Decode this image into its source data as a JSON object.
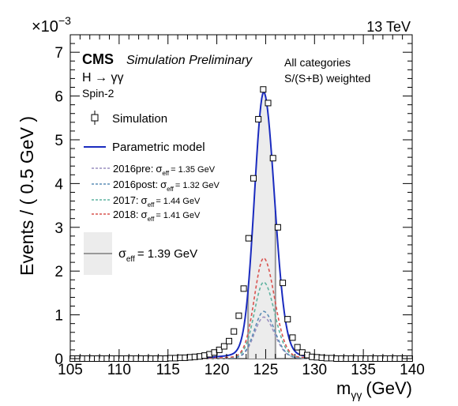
{
  "header": {
    "exponent_base": "×10",
    "exponent_power": "−3",
    "energy": "13 TeV"
  },
  "labels": {
    "cms": "CMS",
    "preliminary": "Simulation Preliminary",
    "process": "H → γγ",
    "spin": "Spin-2",
    "categories": "All categories",
    "weighting": "S/(S+B) weighted"
  },
  "legend": {
    "simulation": "Simulation",
    "model": "Parametric model",
    "years": [
      {
        "year": "2016pre:",
        "sigma": "σ",
        "sub": "eff",
        "value": "= 1.35 GeV",
        "color": "#9a8fbf"
      },
      {
        "year": "2016post:",
        "sigma": "σ",
        "sub": "eff",
        "value": "= 1.32 GeV",
        "color": "#5b8db5"
      },
      {
        "year": "2017:",
        "sigma": "σ",
        "sub": "eff",
        "value": "= 1.44 GeV",
        "color": "#5fb3a0"
      },
      {
        "year": "2018:",
        "sigma": "σ",
        "sub": "eff",
        "value": "= 1.41 GeV",
        "color": "#d9534f"
      }
    ],
    "combined": {
      "sigma": "σ",
      "sub": "eff",
      "value": "= 1.39 GeV"
    }
  },
  "chart_data": {
    "type": "line",
    "xlabel": "m",
    "xlabel_sub": "γγ",
    "xlabel_unit": "(GeV)",
    "ylabel": "Events / ( 0.5 GeV )",
    "xlim": [
      105,
      140
    ],
    "ylim": [
      0,
      7.4
    ],
    "y_scale_factor": "1e-3",
    "x_ticks": [
      105,
      110,
      115,
      120,
      125,
      130,
      135,
      140
    ],
    "y_ticks": [
      0,
      1,
      2,
      3,
      4,
      5,
      6,
      7
    ],
    "effective_window": [
      123.2,
      126.0
    ],
    "colors": {
      "model": "#1a2bbf",
      "band": "#ececec",
      "band_edge": "#999999"
    },
    "simulation": {
      "x": [
        105.25,
        105.75,
        106.25,
        106.75,
        107.25,
        107.75,
        108.25,
        108.75,
        109.25,
        109.75,
        110.25,
        110.75,
        111.25,
        111.75,
        112.25,
        112.75,
        113.25,
        113.75,
        114.25,
        114.75,
        115.25,
        115.75,
        116.25,
        116.75,
        117.25,
        117.75,
        118.25,
        118.75,
        119.25,
        119.75,
        120.25,
        120.75,
        121.25,
        121.75,
        122.25,
        122.75,
        123.25,
        123.75,
        124.25,
        124.75,
        125.25,
        125.75,
        126.25,
        126.75,
        127.25,
        127.75,
        128.25,
        128.75,
        129.25,
        129.75,
        130.25,
        130.75,
        131.25,
        131.75,
        132.25,
        132.75,
        133.25,
        133.75,
        134.25,
        134.75,
        135.25,
        135.75,
        136.25,
        136.75,
        137.25,
        137.75,
        138.25,
        138.75,
        139.25,
        139.75
      ],
      "y": [
        0.0,
        0.0,
        0.0,
        0.0,
        0.0,
        0.0,
        0.0,
        0.0,
        0.0,
        0.0,
        0.0,
        0.0,
        0.0,
        0.0,
        0.0,
        0.0,
        0.0,
        0.0,
        0.0,
        0.0,
        0.01,
        0.01,
        0.02,
        0.02,
        0.03,
        0.04,
        0.05,
        0.07,
        0.1,
        0.14,
        0.2,
        0.28,
        0.4,
        0.62,
        0.98,
        1.6,
        2.75,
        4.12,
        5.47,
        6.15,
        5.84,
        4.58,
        3.0,
        1.73,
        0.9,
        0.48,
        0.26,
        0.14,
        0.08,
        0.04,
        0.03,
        0.02,
        0.01,
        0.01,
        0.0,
        0.0,
        0.0,
        0.0,
        0.0,
        0.0,
        0.0,
        0.0,
        0.0,
        0.0,
        0.0,
        0.0,
        0.0,
        0.0,
        0.0,
        0.0
      ]
    },
    "model": {
      "peak_x": 124.8,
      "peak_y": 6.1,
      "sigma_left": 0.95,
      "sigma_right": 1.1,
      "tail_amp": 0.16,
      "tail_width": 2.4
    },
    "series": [
      {
        "name": "2016pre",
        "peak_y": 0.95,
        "color": "#9a8fbf"
      },
      {
        "name": "2016post",
        "peak_y": 1.08,
        "color": "#5b8db5"
      },
      {
        "name": "2017",
        "peak_y": 1.75,
        "color": "#5fb3a0"
      },
      {
        "name": "2018",
        "peak_y": 2.3,
        "color": "#d9534f"
      }
    ]
  }
}
